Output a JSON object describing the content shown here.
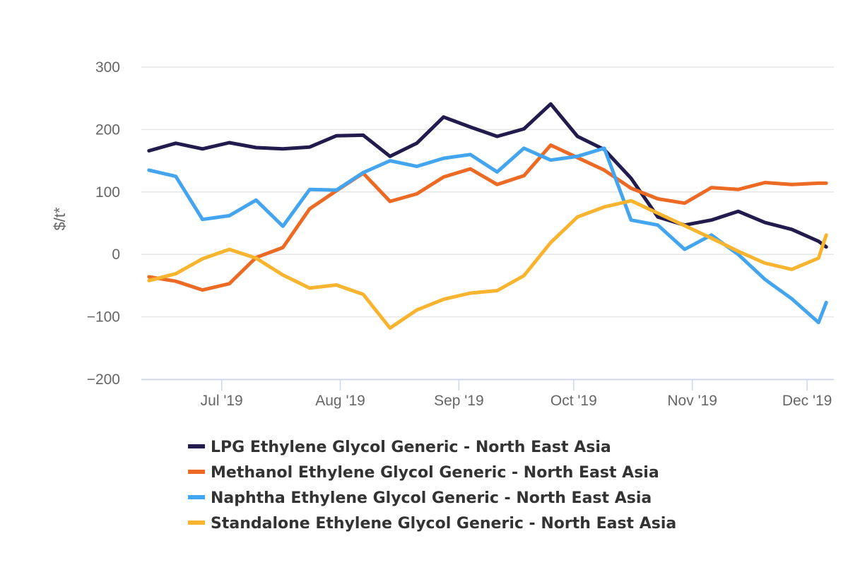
{
  "chart_data": {
    "type": "line",
    "title": "",
    "xlabel": "",
    "ylabel": "$/t*",
    "ylim": [
      -200,
      300
    ],
    "y_ticks": [
      -200,
      -100,
      0,
      100,
      200,
      300
    ],
    "y_tick_labels": [
      "−200",
      "−100",
      "0",
      "100",
      "200",
      "300"
    ],
    "x_ticks": [
      {
        "date": "2019-07-01",
        "label": "Jul '19"
      },
      {
        "date": "2019-08-01",
        "label": "Aug '19"
      },
      {
        "date": "2019-09-01",
        "label": "Sep '19"
      },
      {
        "date": "2019-10-01",
        "label": "Oct '19"
      },
      {
        "date": "2019-11-01",
        "label": "Nov '19"
      },
      {
        "date": "2019-12-01",
        "label": "Dec '19"
      }
    ],
    "xlim": [
      "2019-06-10",
      "2019-12-08"
    ],
    "x": [
      "2019-06-12",
      "2019-06-19",
      "2019-06-26",
      "2019-07-03",
      "2019-07-10",
      "2019-07-17",
      "2019-07-24",
      "2019-07-31",
      "2019-08-07",
      "2019-08-14",
      "2019-08-21",
      "2019-08-28",
      "2019-09-04",
      "2019-09-11",
      "2019-09-18",
      "2019-09-25",
      "2019-10-02",
      "2019-10-09",
      "2019-10-16",
      "2019-10-23",
      "2019-10-30",
      "2019-11-06",
      "2019-11-13",
      "2019-11-20",
      "2019-11-27",
      "2019-12-04",
      "2019-12-06"
    ],
    "grid": true,
    "legend_position": "bottom",
    "series": [
      {
        "name": "LPG Ethylene Glycol Generic - North East Asia",
        "color": "#221c4e",
        "values": [
          166,
          178,
          169,
          179,
          171,
          169,
          172,
          190,
          191,
          157,
          178,
          220,
          204,
          189,
          201,
          241,
          189,
          168,
          122,
          60,
          47,
          55,
          69,
          51,
          40,
          21,
          12
        ]
      },
      {
        "name": "Methanol Ethylene Glycol Generic - North East Asia",
        "color": "#ec6a24",
        "values": [
          -36,
          -43,
          -57,
          -47,
          -5,
          11,
          73,
          102,
          130,
          85,
          97,
          124,
          137,
          112,
          126,
          175,
          155,
          135,
          106,
          89,
          82,
          107,
          104,
          115,
          112,
          114,
          114
        ]
      },
      {
        "name": "Naphtha Ethylene Glycol Generic - North East Asia",
        "color": "#43a5f0",
        "values": [
          135,
          125,
          56,
          62,
          87,
          45,
          104,
          103,
          131,
          150,
          141,
          154,
          160,
          132,
          170,
          151,
          157,
          170,
          55,
          47,
          8,
          31,
          0,
          -40,
          -71,
          -109,
          -77
        ]
      },
      {
        "name": "Standalone Ethylene Glycol Generic - North East Asia",
        "color": "#f9b42f",
        "values": [
          -42,
          -31,
          -7,
          8,
          -6,
          -33,
          -54,
          -49,
          -64,
          -118,
          -89,
          -72,
          -62,
          -58,
          -34,
          19,
          60,
          76,
          86,
          66,
          46,
          26,
          5,
          -14,
          -24,
          -6,
          31
        ]
      }
    ]
  }
}
